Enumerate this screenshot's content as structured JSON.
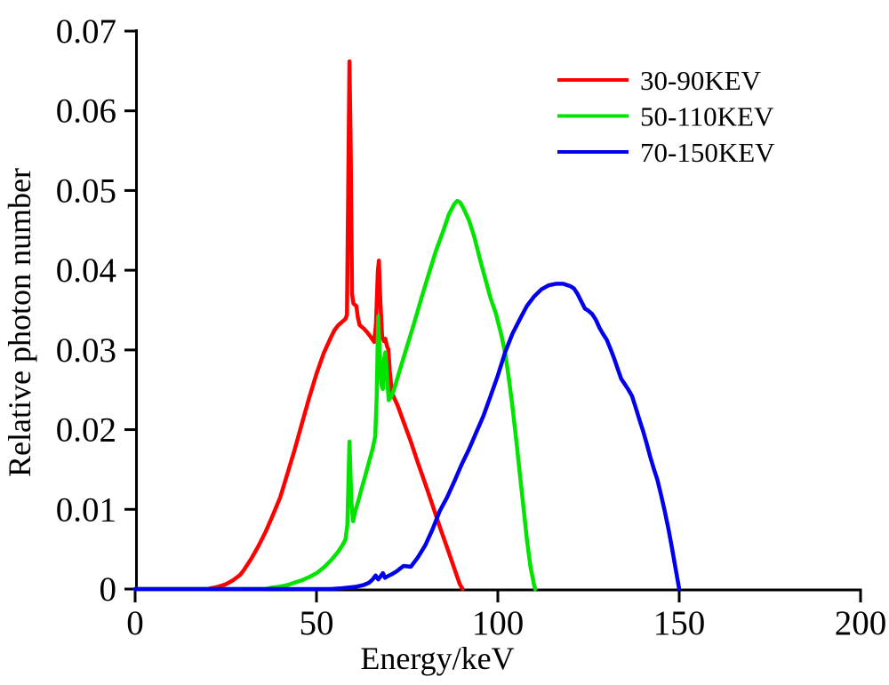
{
  "chart_data": {
    "type": "line",
    "title": "",
    "xlabel": "Energy/keV",
    "ylabel": "Relative photon number",
    "xlim": [
      0,
      200
    ],
    "ylim": [
      0,
      0.07
    ],
    "grid": false,
    "legend_position": "upper-right-inside",
    "xticks": [
      0,
      50,
      100,
      150,
      200
    ],
    "xtick_labels": [
      "0",
      "50",
      "100",
      "150",
      "200"
    ],
    "yticks": [
      0,
      0.01,
      0.02,
      0.03,
      0.04,
      0.05,
      0.06,
      0.07
    ],
    "ytick_labels": [
      "0",
      "0.01",
      "0.02",
      "0.03",
      "0.04",
      "0.05",
      "0.06",
      "0.07"
    ],
    "series": [
      {
        "name": "30-90KEV",
        "color": "#ff0000",
        "peak_note": "continuum to 0.034 with characteristic spikes 0.066 @ 59keV and 0.041 @ 67keV, cutoff 90keV",
        "points": [
          [
            0,
            0
          ],
          [
            20,
            0
          ],
          [
            21,
            0.0001
          ],
          [
            23,
            0.0003
          ],
          [
            25,
            0.0006
          ],
          [
            27,
            0.0011
          ],
          [
            29,
            0.0018
          ],
          [
            30,
            0.0024
          ],
          [
            32,
            0.0038
          ],
          [
            34,
            0.0054
          ],
          [
            36,
            0.0072
          ],
          [
            38,
            0.0093
          ],
          [
            40,
            0.0115
          ],
          [
            42,
            0.0145
          ],
          [
            44,
            0.0175
          ],
          [
            46,
            0.0208
          ],
          [
            48,
            0.024
          ],
          [
            50,
            0.027
          ],
          [
            52,
            0.0296
          ],
          [
            54,
            0.0316
          ],
          [
            55,
            0.0325
          ],
          [
            56,
            0.0331
          ],
          [
            57,
            0.0335
          ],
          [
            58,
            0.0339
          ],
          [
            58.4,
            0.0344
          ],
          [
            58.7,
            0.048
          ],
          [
            59.1,
            0.0662
          ],
          [
            59.4,
            0.056
          ],
          [
            59.8,
            0.037
          ],
          [
            60.2,
            0.0358
          ],
          [
            61,
            0.0355
          ],
          [
            61.4,
            0.0341
          ],
          [
            61.9,
            0.0331
          ],
          [
            63,
            0.0327
          ],
          [
            64,
            0.0322
          ],
          [
            65,
            0.0316
          ],
          [
            65.9,
            0.031
          ],
          [
            66.4,
            0.0332
          ],
          [
            66.9,
            0.0398
          ],
          [
            67.2,
            0.0412
          ],
          [
            67.6,
            0.0362
          ],
          [
            68.1,
            0.0317
          ],
          [
            68.6,
            0.0311
          ],
          [
            69,
            0.0314
          ],
          [
            69.4,
            0.0305
          ],
          [
            69.8,
            0.0301
          ],
          [
            70.2,
            0.0274
          ],
          [
            70.8,
            0.0246
          ],
          [
            71.4,
            0.024
          ],
          [
            72.4,
            0.023
          ],
          [
            74,
            0.021
          ],
          [
            76,
            0.0185
          ],
          [
            78,
            0.0158
          ],
          [
            80,
            0.0132
          ],
          [
            82,
            0.0105
          ],
          [
            84,
            0.0078
          ],
          [
            86,
            0.0052
          ],
          [
            88,
            0.0026
          ],
          [
            89.5,
            0.0006
          ],
          [
            90.3,
            0
          ]
        ]
      },
      {
        "name": "50-110KEV",
        "color": "#00e400",
        "peak_note": "spikes 0.0185 @ 59keV and 0.034 @ 67keV on rising continuum, broad peak 0.049 @ 89keV, cutoff 110keV",
        "points": [
          [
            0,
            0
          ],
          [
            36,
            0
          ],
          [
            38,
            0.0002
          ],
          [
            40,
            0.0003
          ],
          [
            42,
            0.0005
          ],
          [
            44,
            0.0008
          ],
          [
            46,
            0.0011
          ],
          [
            48,
            0.0015
          ],
          [
            50,
            0.002
          ],
          [
            52,
            0.0027
          ],
          [
            54,
            0.0036
          ],
          [
            56,
            0.0047
          ],
          [
            57,
            0.0054
          ],
          [
            58,
            0.0062
          ],
          [
            58.5,
            0.008
          ],
          [
            59.1,
            0.0185
          ],
          [
            59.6,
            0.011
          ],
          [
            60.1,
            0.0085
          ],
          [
            60.6,
            0.0096
          ],
          [
            61.5,
            0.011
          ],
          [
            62.5,
            0.0127
          ],
          [
            63.5,
            0.0143
          ],
          [
            64.5,
            0.016
          ],
          [
            65.5,
            0.0176
          ],
          [
            66.2,
            0.0192
          ],
          [
            66.6,
            0.024
          ],
          [
            67,
            0.0342
          ],
          [
            67.4,
            0.03
          ],
          [
            67.9,
            0.0256
          ],
          [
            68.3,
            0.0251
          ],
          [
            68.7,
            0.029
          ],
          [
            69,
            0.0297
          ],
          [
            69.4,
            0.027
          ],
          [
            69.9,
            0.0237
          ],
          [
            70.6,
            0.0241
          ],
          [
            71.5,
            0.0252
          ],
          [
            73,
            0.0275
          ],
          [
            75,
            0.0305
          ],
          [
            77,
            0.0335
          ],
          [
            79,
            0.0366
          ],
          [
            81,
            0.0396
          ],
          [
            83,
            0.0425
          ],
          [
            85,
            0.045
          ],
          [
            86.5,
            0.047
          ],
          [
            88,
            0.0483
          ],
          [
            88.8,
            0.0487
          ],
          [
            89.6,
            0.0485
          ],
          [
            90.5,
            0.0478
          ],
          [
            92,
            0.0463
          ],
          [
            93.5,
            0.0442
          ],
          [
            95,
            0.0415
          ],
          [
            96.5,
            0.039
          ],
          [
            98,
            0.0365
          ],
          [
            99.5,
            0.0345
          ],
          [
            101,
            0.0318
          ],
          [
            102,
            0.0296
          ],
          [
            103,
            0.0266
          ],
          [
            104,
            0.023
          ],
          [
            105,
            0.019
          ],
          [
            106,
            0.0147
          ],
          [
            107,
            0.0105
          ],
          [
            108,
            0.0063
          ],
          [
            109,
            0.0028
          ],
          [
            110,
            0.0005
          ],
          [
            110.3,
            0
          ]
        ]
      },
      {
        "name": "70-150KEV",
        "color": "#0000ee",
        "peak_note": "smooth hump, small wiggle near 67keV, broad peak 0.038 @ 116-120keV, cutoff 150keV",
        "points": [
          [
            0,
            0
          ],
          [
            54,
            0
          ],
          [
            57,
            0.0001
          ],
          [
            59,
            0.0002
          ],
          [
            61,
            0.0003
          ],
          [
            63,
            0.0005
          ],
          [
            64.5,
            0.0008
          ],
          [
            65.5,
            0.0012
          ],
          [
            66.3,
            0.0017
          ],
          [
            67,
            0.0012
          ],
          [
            67.7,
            0.0016
          ],
          [
            68.3,
            0.002
          ],
          [
            68.9,
            0.0014
          ],
          [
            69.6,
            0.0016
          ],
          [
            70.5,
            0.0018
          ],
          [
            72,
            0.0022
          ],
          [
            74,
            0.0029
          ],
          [
            76,
            0.0028
          ],
          [
            78,
            0.004
          ],
          [
            80,
            0.0055
          ],
          [
            82,
            0.0075
          ],
          [
            84,
            0.0098
          ],
          [
            86,
            0.0115
          ],
          [
            88,
            0.0135
          ],
          [
            90,
            0.0156
          ],
          [
            92,
            0.0175
          ],
          [
            94,
            0.0196
          ],
          [
            96,
            0.0217
          ],
          [
            98,
            0.0242
          ],
          [
            100,
            0.0268
          ],
          [
            102,
            0.0297
          ],
          [
            104,
            0.032
          ],
          [
            106,
            0.0338
          ],
          [
            108,
            0.0355
          ],
          [
            110,
            0.0367
          ],
          [
            112,
            0.0376
          ],
          [
            114,
            0.0381
          ],
          [
            116,
            0.0383
          ],
          [
            118,
            0.0383
          ],
          [
            120,
            0.038
          ],
          [
            121,
            0.0377
          ],
          [
            122,
            0.037
          ],
          [
            123,
            0.0361
          ],
          [
            124,
            0.0352
          ],
          [
            125,
            0.0349
          ],
          [
            126,
            0.0345
          ],
          [
            127,
            0.0338
          ],
          [
            128,
            0.0328
          ],
          [
            129,
            0.032
          ],
          [
            130,
            0.0313
          ],
          [
            131,
            0.0302
          ],
          [
            132,
            0.029
          ],
          [
            133,
            0.0277
          ],
          [
            134,
            0.0264
          ],
          [
            135,
            0.0257
          ],
          [
            136,
            0.025
          ],
          [
            137,
            0.0242
          ],
          [
            138,
            0.0228
          ],
          [
            139,
            0.0213
          ],
          [
            140,
            0.0199
          ],
          [
            141,
            0.0183
          ],
          [
            142,
            0.0166
          ],
          [
            143,
            0.0151
          ],
          [
            144,
            0.0137
          ],
          [
            145,
            0.0118
          ],
          [
            146,
            0.0098
          ],
          [
            147,
            0.0076
          ],
          [
            148,
            0.0052
          ],
          [
            149,
            0.0026
          ],
          [
            150,
            0
          ]
        ]
      }
    ]
  }
}
